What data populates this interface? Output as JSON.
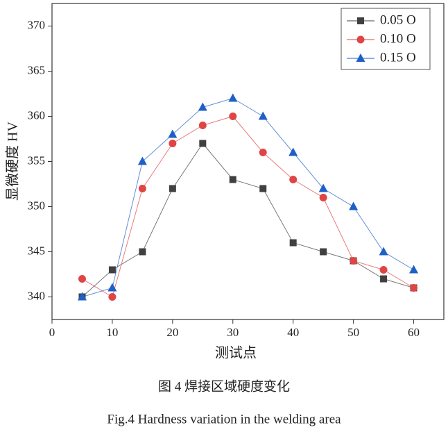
{
  "chart_data": {
    "type": "line",
    "title": "图 4  焊接区域硬度变化",
    "subtitle": "Fig.4 Hardness variation in the welding area",
    "x_label": "测试点",
    "y_label": "显微硬度 HV",
    "x": [
      5,
      10,
      15,
      20,
      25,
      30,
      35,
      40,
      45,
      50,
      55,
      60
    ],
    "series": [
      {
        "name": "0.05 O",
        "color": "#404040",
        "marker": "square",
        "values": [
          340,
          343,
          345,
          352,
          357,
          353,
          352,
          346,
          345,
          344,
          342,
          341
        ]
      },
      {
        "name": "0.10 O",
        "color": "#e04545",
        "marker": "circle",
        "values": [
          342,
          340,
          352,
          357,
          359,
          360,
          356,
          353,
          351,
          344,
          343,
          341
        ]
      },
      {
        "name": "0.15 O",
        "color": "#1f5fc8",
        "marker": "triangle",
        "values": [
          340,
          341,
          355,
          358,
          361,
          362,
          360,
          356,
          352,
          350,
          345,
          343
        ]
      }
    ],
    "xlim": [
      0,
      65
    ],
    "xticks": [
      0,
      10,
      20,
      30,
      40,
      50,
      60
    ],
    "ylim": [
      337.5,
      372.5
    ],
    "yticks": [
      340,
      345,
      350,
      355,
      360,
      365,
      370
    ],
    "legend": "upper right"
  }
}
